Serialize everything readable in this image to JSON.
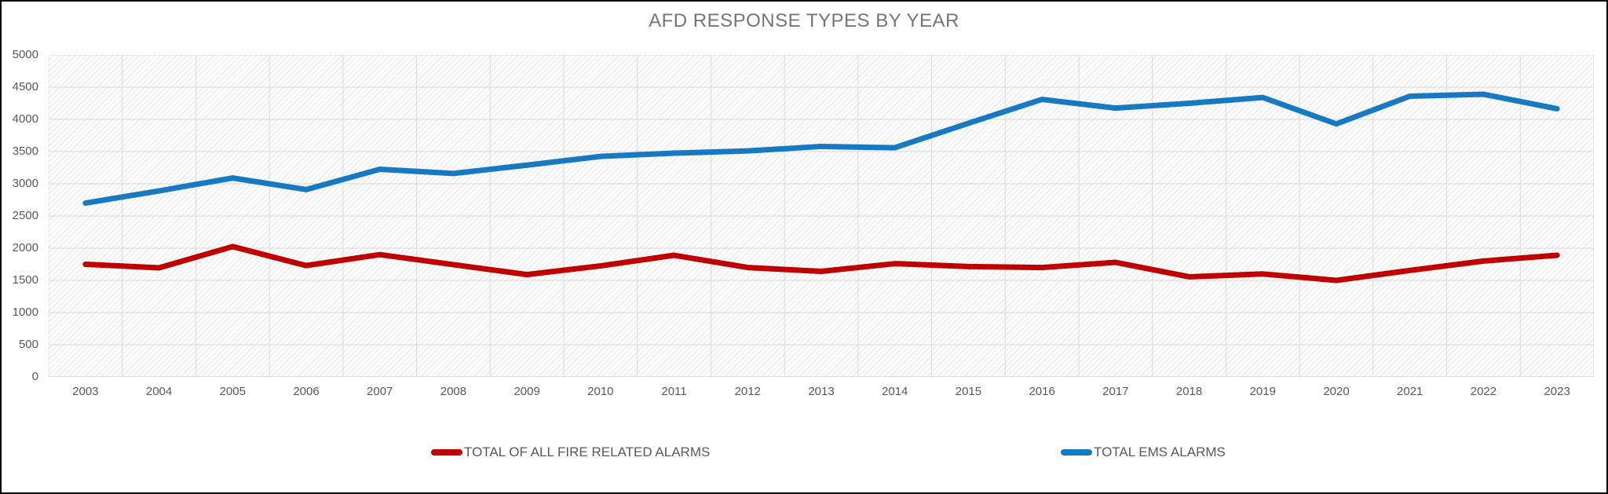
{
  "chart": {
    "title": "AFD RESPONSE TYPES BY YEAR"
  },
  "chart_data": {
    "type": "line",
    "title": "AFD RESPONSE TYPES BY YEAR",
    "xlabel": "",
    "ylabel": "",
    "ylim": [
      0,
      5000
    ],
    "ytick_step": 500,
    "grid": true,
    "legend_position": "bottom",
    "plot_background": "diagonal-hatch",
    "categories": [
      "2003",
      "2004",
      "2005",
      "2006",
      "2007",
      "2008",
      "2009",
      "2010",
      "2011",
      "2012",
      "2013",
      "2014",
      "2015",
      "2016",
      "2017",
      "2018",
      "2019",
      "2020",
      "2021",
      "2022",
      "2023"
    ],
    "series": [
      {
        "name": "TOTAL OF ALL FIRE RELATED ALARMS",
        "color": "#C00000",
        "values": [
          1750,
          1695,
          2025,
          1730,
          1900,
          1745,
          1590,
          1725,
          1890,
          1700,
          1640,
          1760,
          1715,
          1700,
          1780,
          1555,
          1600,
          1500,
          1655,
          1800,
          1890
        ]
      },
      {
        "name": "TOTAL EMS ALARMS",
        "color": "#1779C2",
        "values": [
          2700,
          2890,
          3090,
          2910,
          3225,
          3160,
          3290,
          3425,
          3475,
          3510,
          3580,
          3560,
          3940,
          4310,
          4175,
          4250,
          4340,
          3930,
          4360,
          4390,
          4165
        ]
      }
    ],
    "colors": {
      "gridline": "#d9d9d9",
      "axis_line": "#c0c0c0",
      "tick_text": "#595959",
      "title_text": "#757575"
    }
  }
}
